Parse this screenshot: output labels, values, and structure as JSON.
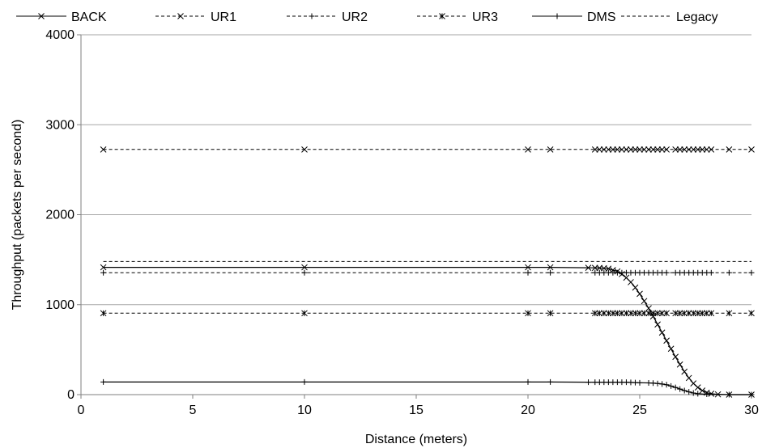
{
  "chart_data": {
    "type": "line",
    "title": "",
    "xlabel": "Distance (meters)",
    "ylabel": "Throughput (packets per second)",
    "xlim": [
      0,
      30
    ],
    "ylim": [
      0,
      4000
    ],
    "xticks": [
      "0",
      "5",
      "10",
      "15",
      "20",
      "25",
      "30"
    ],
    "yticks": [
      "0",
      "1000",
      "2000",
      "3000",
      "4000"
    ],
    "grid": "horizontal",
    "legend_position": "top",
    "series": [
      {
        "name": "BACK",
        "line_style": "solid",
        "marker": "x",
        "points": [
          [
            1,
            1415
          ],
          [
            10,
            1415
          ],
          [
            20,
            1415
          ],
          [
            21,
            1415
          ],
          [
            22.7,
            1410
          ],
          [
            23,
            1409
          ],
          [
            23.2,
            1408
          ],
          [
            23.4,
            1405
          ],
          [
            23.6,
            1400
          ],
          [
            23.8,
            1385
          ],
          [
            24,
            1370
          ],
          [
            24.2,
            1340
          ],
          [
            24.4,
            1300
          ],
          [
            24.6,
            1250
          ],
          [
            24.8,
            1190
          ],
          [
            25,
            1120
          ],
          [
            25.2,
            1040
          ],
          [
            25.4,
            960
          ],
          [
            25.6,
            870
          ],
          [
            25.8,
            780
          ],
          [
            26,
            690
          ],
          [
            26.2,
            600
          ],
          [
            26.4,
            510
          ],
          [
            26.6,
            420
          ],
          [
            26.8,
            335
          ],
          [
            27,
            255
          ],
          [
            27.2,
            185
          ],
          [
            27.4,
            125
          ],
          [
            27.6,
            80
          ],
          [
            27.8,
            45
          ],
          [
            28,
            22
          ],
          [
            28.2,
            10
          ],
          [
            28.5,
            3
          ],
          [
            29,
            0
          ],
          [
            30,
            0
          ]
        ]
      },
      {
        "name": "UR1",
        "line_style": "dashed",
        "marker": "x",
        "points": [
          [
            1,
            2725
          ],
          [
            10,
            2725
          ],
          [
            20,
            2725
          ],
          [
            21,
            2725
          ],
          [
            23,
            2725
          ],
          [
            23.2,
            2725
          ],
          [
            23.4,
            2725
          ],
          [
            23.6,
            2725
          ],
          [
            23.8,
            2725
          ],
          [
            24,
            2725
          ],
          [
            24.2,
            2725
          ],
          [
            24.4,
            2725
          ],
          [
            24.6,
            2725
          ],
          [
            24.8,
            2725
          ],
          [
            25,
            2725
          ],
          [
            25.2,
            2725
          ],
          [
            25.4,
            2725
          ],
          [
            25.6,
            2725
          ],
          [
            25.8,
            2725
          ],
          [
            26,
            2725
          ],
          [
            26.2,
            2725
          ],
          [
            26.6,
            2725
          ],
          [
            26.8,
            2725
          ],
          [
            27,
            2725
          ],
          [
            27.2,
            2725
          ],
          [
            27.4,
            2725
          ],
          [
            27.6,
            2725
          ],
          [
            27.8,
            2725
          ],
          [
            28,
            2725
          ],
          [
            28.2,
            2725
          ],
          [
            29,
            2725
          ],
          [
            30,
            2725
          ]
        ]
      },
      {
        "name": "UR2",
        "line_style": "dashed",
        "marker": "+",
        "points": [
          [
            1,
            1355
          ],
          [
            10,
            1355
          ],
          [
            20,
            1355
          ],
          [
            21,
            1355
          ],
          [
            23,
            1355
          ],
          [
            23.2,
            1355
          ],
          [
            23.4,
            1355
          ],
          [
            23.6,
            1355
          ],
          [
            23.8,
            1355
          ],
          [
            24,
            1355
          ],
          [
            24.2,
            1355
          ],
          [
            24.4,
            1355
          ],
          [
            24.6,
            1355
          ],
          [
            24.8,
            1355
          ],
          [
            25,
            1355
          ],
          [
            25.2,
            1355
          ],
          [
            25.4,
            1355
          ],
          [
            25.6,
            1355
          ],
          [
            25.8,
            1355
          ],
          [
            26,
            1355
          ],
          [
            26.2,
            1355
          ],
          [
            26.6,
            1355
          ],
          [
            26.8,
            1355
          ],
          [
            27,
            1355
          ],
          [
            27.2,
            1355
          ],
          [
            27.4,
            1355
          ],
          [
            27.6,
            1355
          ],
          [
            27.8,
            1355
          ],
          [
            28,
            1355
          ],
          [
            28.2,
            1355
          ],
          [
            29,
            1355
          ],
          [
            30,
            1355
          ]
        ]
      },
      {
        "name": "UR3",
        "line_style": "dashed",
        "marker": "asterisk",
        "points": [
          [
            1,
            905
          ],
          [
            10,
            905
          ],
          [
            20,
            905
          ],
          [
            21,
            905
          ],
          [
            23,
            905
          ],
          [
            23.2,
            905
          ],
          [
            23.4,
            905
          ],
          [
            23.6,
            905
          ],
          [
            23.8,
            905
          ],
          [
            24,
            905
          ],
          [
            24.2,
            905
          ],
          [
            24.4,
            905
          ],
          [
            24.6,
            905
          ],
          [
            24.8,
            905
          ],
          [
            25,
            905
          ],
          [
            25.2,
            905
          ],
          [
            25.4,
            905
          ],
          [
            25.6,
            905
          ],
          [
            25.8,
            905
          ],
          [
            26,
            905
          ],
          [
            26.2,
            905
          ],
          [
            26.6,
            905
          ],
          [
            26.8,
            905
          ],
          [
            27,
            905
          ],
          [
            27.2,
            905
          ],
          [
            27.4,
            905
          ],
          [
            27.6,
            905
          ],
          [
            27.8,
            905
          ],
          [
            28,
            905
          ],
          [
            28.2,
            905
          ],
          [
            29,
            905
          ],
          [
            30,
            905
          ]
        ]
      },
      {
        "name": "DMS",
        "line_style": "solid",
        "marker": "+",
        "points": [
          [
            1,
            140
          ],
          [
            10,
            140
          ],
          [
            20,
            140
          ],
          [
            21,
            140
          ],
          [
            22.7,
            138
          ],
          [
            23,
            138
          ],
          [
            23.2,
            138
          ],
          [
            23.4,
            138
          ],
          [
            23.6,
            138
          ],
          [
            23.8,
            138
          ],
          [
            24,
            138
          ],
          [
            24.2,
            138
          ],
          [
            24.4,
            138
          ],
          [
            24.6,
            136
          ],
          [
            24.8,
            134
          ],
          [
            25,
            132
          ],
          [
            25.4,
            130
          ],
          [
            25.6,
            128
          ],
          [
            25.8,
            124
          ],
          [
            26,
            118
          ],
          [
            26.2,
            110
          ],
          [
            26.4,
            95
          ],
          [
            26.6,
            80
          ],
          [
            26.8,
            62
          ],
          [
            27,
            45
          ],
          [
            27.2,
            30
          ],
          [
            27.4,
            18
          ],
          [
            27.6,
            10
          ],
          [
            28,
            4
          ],
          [
            29,
            0
          ],
          [
            30,
            0
          ]
        ]
      },
      {
        "name": "Legacy",
        "line_style": "dashed",
        "marker": "none",
        "points": [
          [
            1,
            1480
          ],
          [
            30,
            1480
          ]
        ]
      }
    ]
  }
}
